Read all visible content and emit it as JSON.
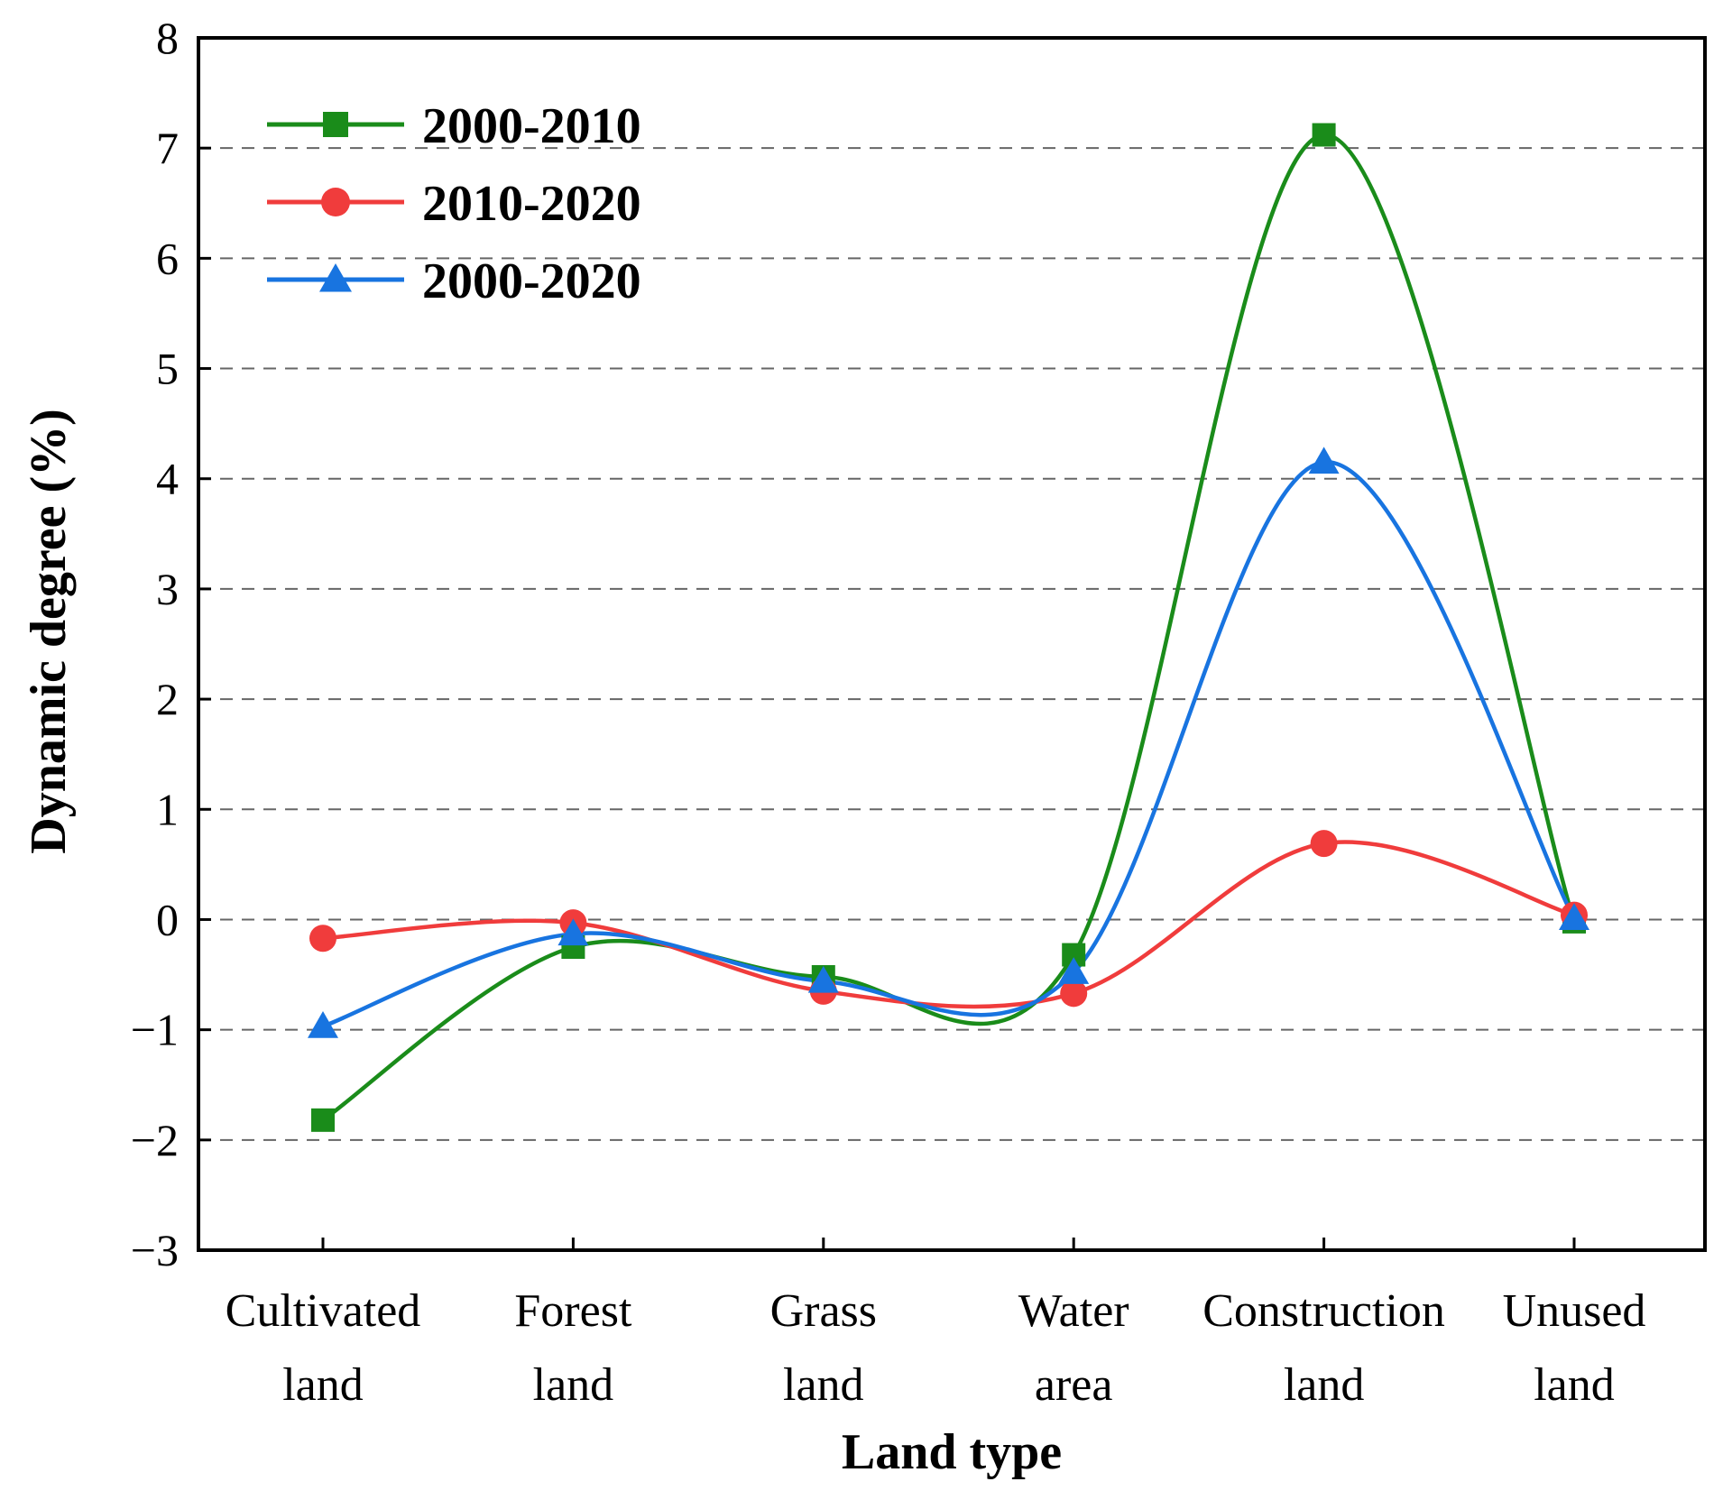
{
  "chart_data": {
    "type": "line",
    "smooth": true,
    "title": "",
    "xlabel": "Land type",
    "ylabel": "Dynamic degree (%)",
    "ylim": [
      -3,
      8
    ],
    "yticks": [
      8,
      7,
      6,
      5,
      4,
      3,
      2,
      1,
      0,
      -1,
      -2,
      -3
    ],
    "ytick_labels": [
      "8",
      "7",
      "6",
      "5",
      "4",
      "3",
      "2",
      "1",
      "0",
      "−1",
      "−2",
      "−3"
    ],
    "grid_values": [
      7,
      6,
      5,
      4,
      3,
      2,
      1,
      0,
      -1,
      -2
    ],
    "categories": [
      [
        "Cultivated",
        "land"
      ],
      [
        "Forest",
        "land"
      ],
      [
        "Grass",
        "land"
      ],
      [
        "Water",
        "area"
      ],
      [
        "Construction",
        "land"
      ],
      [
        "Unused",
        "land"
      ]
    ],
    "legend_position": "top-left",
    "series": [
      {
        "name": "2000-2010",
        "color": "#1a8c1a",
        "marker": "square",
        "values": [
          -1.82,
          -0.25,
          -0.52,
          -0.32,
          7.12,
          -0.02
        ]
      },
      {
        "name": "2010-2020",
        "color": "#f03c3c",
        "marker": "circle",
        "values": [
          -0.17,
          -0.03,
          -0.65,
          -0.67,
          0.69,
          0.04
        ]
      },
      {
        "name": "2000-2020",
        "color": "#1874e0",
        "marker": "triangle",
        "values": [
          -0.97,
          -0.13,
          -0.56,
          -0.48,
          4.15,
          0.01
        ]
      }
    ]
  }
}
